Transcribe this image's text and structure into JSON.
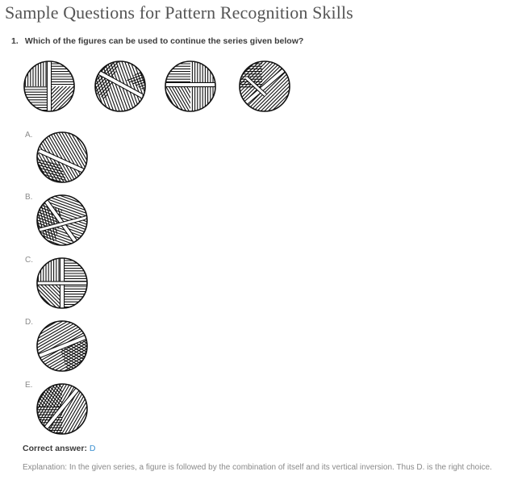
{
  "title": "Sample Questions for Pattern Recognition Skills",
  "question": {
    "number": "1.",
    "text": "Which of the figures can be used to continue the series given below?"
  },
  "series_figures": [
    "series-figure-1",
    "series-figure-2",
    "series-figure-3",
    "series-figure-4"
  ],
  "options": [
    {
      "letter": "A."
    },
    {
      "letter": "B."
    },
    {
      "letter": "C."
    },
    {
      "letter": "D."
    },
    {
      "letter": "E."
    }
  ],
  "answer": {
    "label": "Correct answer:",
    "value": "D"
  },
  "explanation": "Explanation: In the given series, a figure is followed by the combination of itself and its vertical inversion. Thus D. is the right choice."
}
